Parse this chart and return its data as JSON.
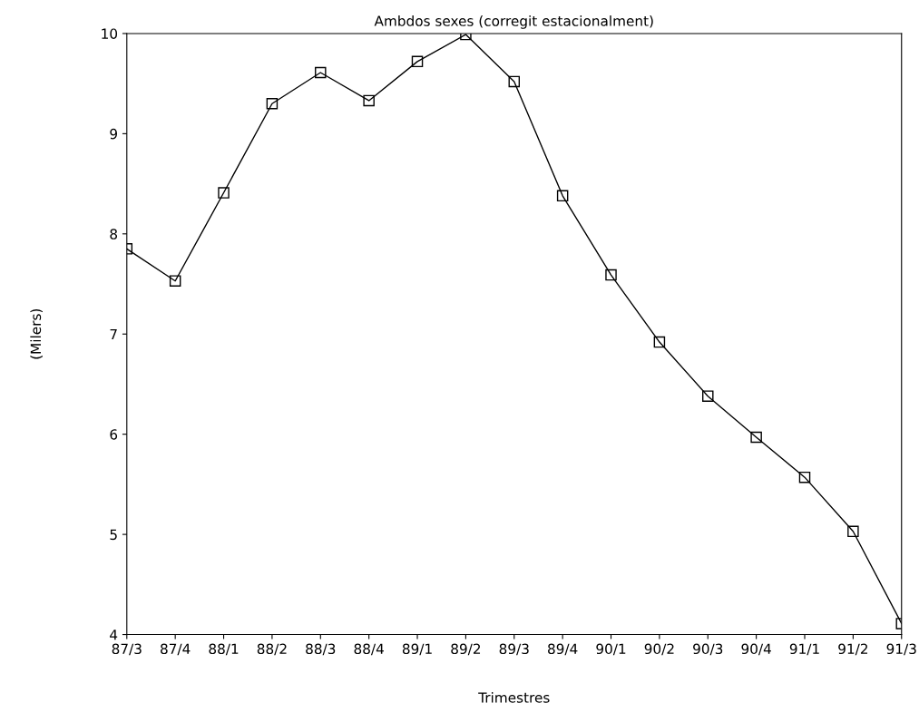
{
  "chart_data": {
    "type": "line",
    "title": "Ambdos sexes (corregit estacionalment)",
    "xlabel": "Trimestres",
    "ylabel": "(Milers)",
    "categories": [
      "87/3",
      "87/4",
      "88/1",
      "88/2",
      "88/3",
      "88/4",
      "89/1",
      "89/2",
      "89/3",
      "89/4",
      "90/1",
      "90/2",
      "90/3",
      "90/4",
      "91/1",
      "91/2",
      "91/3"
    ],
    "series": [
      {
        "color": "#000000",
        "values": [
          7.85,
          7.53,
          8.41,
          9.3,
          9.61,
          9.33,
          9.72,
          9.99,
          9.52,
          8.38,
          7.59,
          6.92,
          6.38,
          5.97,
          5.57,
          5.03,
          4.11
        ]
      }
    ],
    "ylim": [
      4,
      10
    ],
    "yticks": [
      4,
      5,
      6,
      7,
      8,
      9,
      10
    ],
    "grid": false,
    "marker": "square",
    "line_style": "solid"
  }
}
